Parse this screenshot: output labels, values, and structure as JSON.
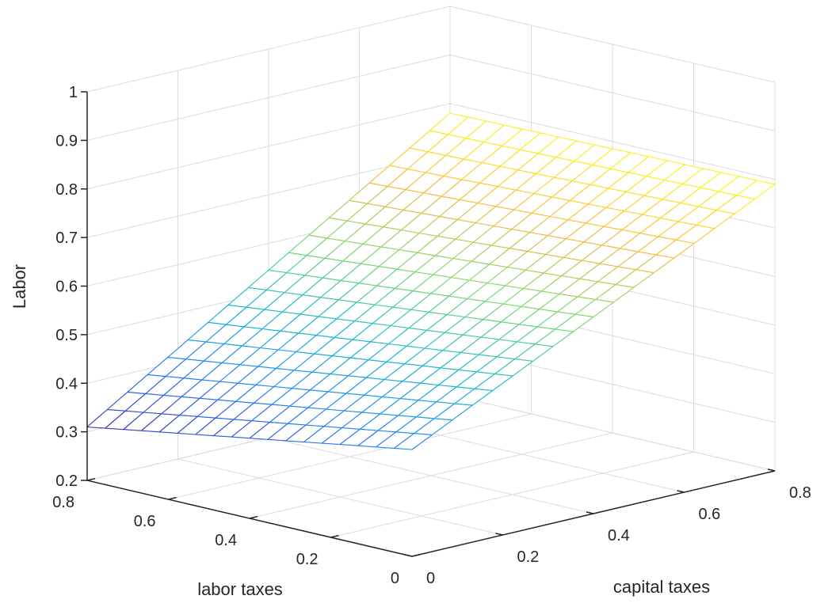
{
  "chart_data": {
    "type": "surface",
    "render_style": "mesh",
    "x_axis": {
      "label": "capital taxes",
      "ticks": [
        "0",
        "0.2",
        "0.4",
        "0.6",
        "0.8"
      ],
      "range": [
        0,
        0.8
      ]
    },
    "y_axis": {
      "label": "labor taxes",
      "ticks": [
        "0",
        "0.2",
        "0.4",
        "0.6",
        "0.8"
      ],
      "range": [
        0,
        0.8
      ]
    },
    "z_axis": {
      "label": "Labor",
      "ticks": [
        "0.2",
        "0.3",
        "0.4",
        "0.5",
        "0.6",
        "0.7",
        "0.8",
        "0.9",
        "1"
      ],
      "range": [
        0.2,
        1
      ]
    },
    "grid": true,
    "colormap": "parula",
    "mesh_steps": 18,
    "corners": [
      {
        "capital_taxes": 0,
        "labor_taxes": 0,
        "labor": 0.42
      },
      {
        "capital_taxes": 0.8,
        "labor_taxes": 0,
        "labor": 0.79
      },
      {
        "capital_taxes": 0,
        "labor_taxes": 0.8,
        "labor": 0.31
      },
      {
        "capital_taxes": 0.8,
        "labor_taxes": 0.8,
        "labor": 0.78
      }
    ],
    "colors": {
      "axis": "#262626",
      "grid": "#dcdcdc"
    }
  }
}
